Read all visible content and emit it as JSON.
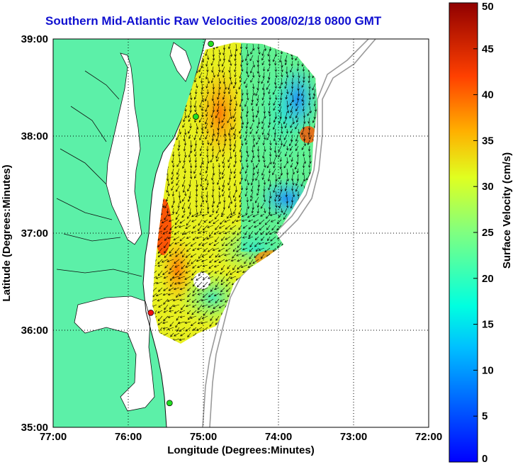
{
  "title": "Southern Mid-Atlantic Raw Velocities 2008/02/18 0800 GMT",
  "axes": {
    "xlabel": "Longitude (Degrees:Minutes)",
    "ylabel": "Latitude (Degrees:Minutes)",
    "x_ticks": [
      "77:00",
      "76:00",
      "75:00",
      "74:00",
      "73:00",
      "72:00"
    ],
    "y_ticks": [
      "39:00",
      "38:00",
      "37:00",
      "36:00",
      "35:00"
    ],
    "x_range": [
      -77,
      -72
    ],
    "y_range": [
      35,
      39
    ],
    "grid": "dotted"
  },
  "colorbar": {
    "label": "Surface Velocity (cm/s)",
    "ticks": [
      "0",
      "5",
      "10",
      "15",
      "20",
      "25",
      "30",
      "35",
      "40",
      "45",
      "50"
    ],
    "range": [
      0,
      50
    ],
    "colormap": "jet"
  },
  "colors": {
    "land": "#5cf0a8",
    "title": "#1010d0",
    "site_green": "#22dd22",
    "site_red": "#ee1111"
  },
  "sites": [
    {
      "lon": -74.9,
      "lat": 38.95,
      "status": "green"
    },
    {
      "lon": -75.1,
      "lat": 38.2,
      "status": "green"
    },
    {
      "lon": -75.7,
      "lat": 36.18,
      "status": "red"
    },
    {
      "lon": -75.45,
      "lat": 35.25,
      "status": "green"
    }
  ]
}
